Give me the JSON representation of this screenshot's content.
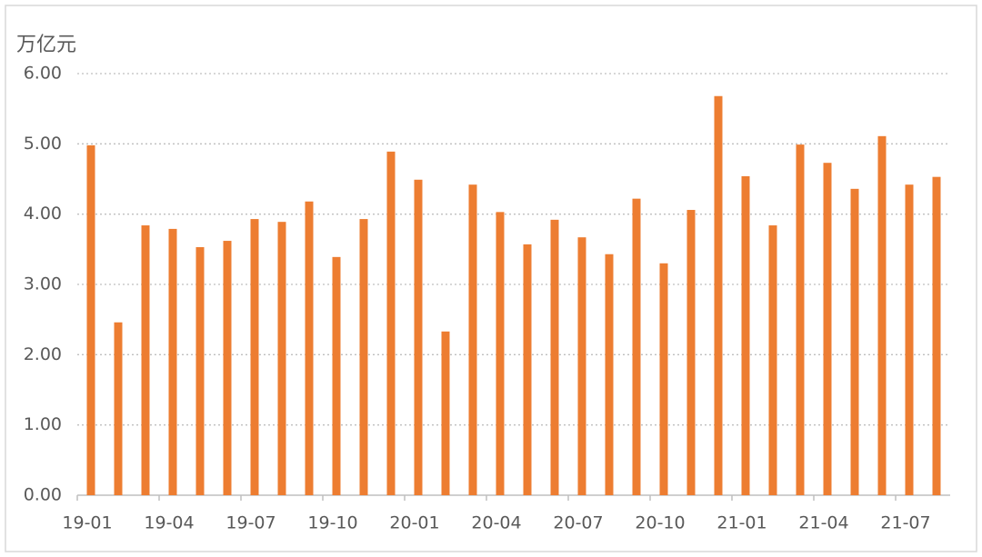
{
  "chart_data": {
    "type": "bar",
    "y_unit": "万亿元",
    "categories": [
      "19-01",
      null,
      null,
      "19-04",
      null,
      null,
      "19-07",
      null,
      null,
      "19-10",
      null,
      null,
      "20-01",
      null,
      null,
      "20-04",
      null,
      null,
      "20-07",
      null,
      null,
      "20-10",
      null,
      null,
      "21-01",
      null,
      null,
      "21-04",
      null,
      null,
      "21-07",
      null
    ],
    "values": [
      4.98,
      2.46,
      3.84,
      3.79,
      3.53,
      3.62,
      3.93,
      3.89,
      4.18,
      3.39,
      3.93,
      4.89,
      4.49,
      2.33,
      4.42,
      4.03,
      3.57,
      3.92,
      3.67,
      3.43,
      4.22,
      3.3,
      4.06,
      5.68,
      4.54,
      3.84,
      4.99,
      4.73,
      4.36,
      5.11,
      4.42,
      4.53
    ],
    "color": "#ed7d31",
    "ylim": [
      0,
      6
    ],
    "yticks": [
      {
        "value": 0,
        "label": "0.00"
      },
      {
        "value": 1,
        "label": "1.00"
      },
      {
        "value": 2,
        "label": "2.00"
      },
      {
        "value": 3,
        "label": "3.00"
      },
      {
        "value": 4,
        "label": "4.00"
      },
      {
        "value": 5,
        "label": "5.00"
      },
      {
        "value": 6,
        "label": "6.00"
      }
    ],
    "grid": true
  }
}
